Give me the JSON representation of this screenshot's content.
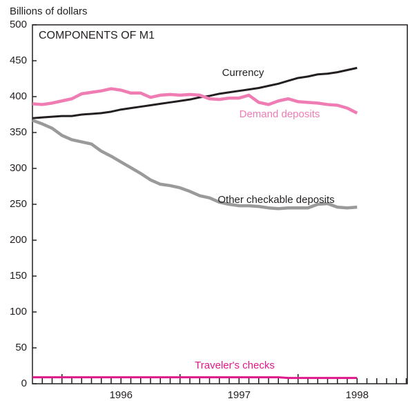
{
  "chart_data": {
    "type": "line",
    "title": "COMPONENTS OF M1",
    "y_label": "Billions of dollars",
    "categories": [
      null,
      null,
      null,
      null,
      null,
      null,
      null,
      null,
      null,
      null,
      null,
      null,
      null,
      null,
      null,
      null,
      null,
      null,
      null,
      null,
      null,
      null,
      null,
      null,
      null,
      null,
      null,
      null,
      null,
      null,
      null,
      null,
      null,
      null
    ],
    "year_labels": [
      "1996",
      "1997",
      "1998"
    ],
    "series": [
      {
        "name": "Currency",
        "color": "#231f20",
        "values": [
          370,
          371,
          372,
          373,
          373,
          375,
          376,
          377,
          379,
          382,
          384,
          386,
          388,
          390,
          392,
          394,
          396,
          399,
          401,
          404,
          406,
          408,
          410,
          412,
          415,
          418,
          422,
          426,
          428,
          431,
          432,
          434,
          437,
          440
        ]
      },
      {
        "name": "Demand deposits",
        "color": "#f07cb4",
        "values": [
          390,
          389,
          391,
          394,
          397,
          404,
          406,
          408,
          411,
          409,
          405,
          405,
          399,
          402,
          403,
          402,
          403,
          402,
          397,
          396,
          398,
          398,
          402,
          392,
          389,
          394,
          397,
          393,
          392,
          391,
          389,
          388,
          384,
          377
        ]
      },
      {
        "name": "Other checkable deposits",
        "color": "#9a9a9a",
        "values": [
          367,
          362,
          356,
          346,
          340,
          337,
          334,
          324,
          317,
          309,
          301,
          293,
          284,
          278,
          276,
          273,
          268,
          262,
          259,
          253,
          250,
          248,
          248,
          247,
          245,
          244,
          245,
          245,
          245,
          250,
          251,
          246,
          245,
          246
        ]
      },
      {
        "name": "Traveler's checks",
        "color": "#e0198a",
        "values": [
          9,
          9,
          9,
          9,
          9,
          9,
          9,
          9,
          9,
          9,
          9,
          9,
          9,
          9,
          9,
          9,
          9,
          9,
          9,
          9,
          9,
          9,
          9,
          9,
          9,
          9,
          8,
          8,
          8,
          8,
          8,
          8,
          8,
          8
        ]
      }
    ],
    "ylim": [
      0,
      500
    ],
    "yticks": [
      0,
      50,
      100,
      150,
      200,
      250,
      300,
      350,
      400,
      450,
      500
    ]
  }
}
